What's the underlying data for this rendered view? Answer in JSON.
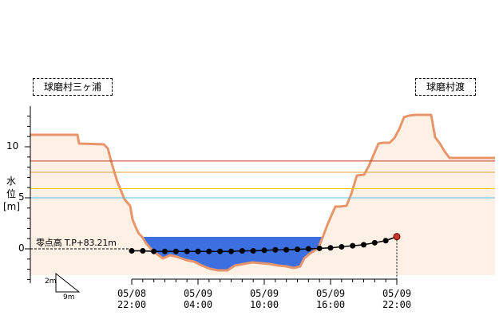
{
  "stations": {
    "left": "球磨村三ヶ浦",
    "right": "球磨村渡"
  },
  "y_axis": {
    "label_chars": [
      "水",
      "位",
      "[m]"
    ],
    "ticks": [
      "10",
      "5",
      "0"
    ]
  },
  "zero_point_label": "零点高 T.P+83.21m",
  "scale_legend": {
    "vertical": "2m",
    "horizontal": "9m"
  },
  "colors": {
    "profile_stroke": "#e8956b",
    "profile_fill": "#fbe3d0",
    "water_fill": "#3c6fe0",
    "line_red": "#c0392b",
    "line_orange": "#e6a23c",
    "line_yellow": "#f5d000",
    "line_blue": "#5bc0eb",
    "series_marker": "#000000",
    "current_marker": "#c0392b"
  },
  "chart_data": {
    "type": "line",
    "title": "",
    "xlabel": "",
    "ylabel": "水位[m]",
    "ylim": [
      -2.2,
      13.8
    ],
    "grid": false,
    "categories": [
      "05/08 22:00",
      "05/09 04:00",
      "05/09 10:00",
      "05/09 16:00",
      "05/09 22:00"
    ],
    "x_tick_labels": [
      {
        "date": "05/08",
        "time": "22:00"
      },
      {
        "date": "05/09",
        "time": "04:00"
      },
      {
        "date": "05/09",
        "time": "10:00"
      },
      {
        "date": "05/09",
        "time": "16:00"
      },
      {
        "date": "05/09",
        "time": "22:00"
      }
    ],
    "reference_levels": [
      {
        "value": 8.6,
        "color": "#c0392b"
      },
      {
        "value": 7.5,
        "color": "#e6a23c"
      },
      {
        "value": 5.9,
        "color": "#f5d000"
      },
      {
        "value": 5.0,
        "color": "#5bc0eb"
      }
    ],
    "series": [
      {
        "x": [
          "05/08 22:00",
          "05/08 23:00",
          "05/09 00:00",
          "05/09 01:00",
          "05/09 02:00",
          "05/09 03:00",
          "05/09 04:00",
          "05/09 05:00",
          "05/09 06:00",
          "05/09 07:00",
          "05/09 08:00",
          "05/09 09:00",
          "05/09 10:00",
          "05/09 11:00",
          "05/09 12:00",
          "05/09 13:00",
          "05/09 14:00",
          "05/09 15:00",
          "05/09 16:00",
          "05/09 17:00",
          "05/09 18:00",
          "05/09 19:00",
          "05/09 20:00",
          "05/09 21:00",
          "05/09 22:00"
        ],
        "values": [
          -0.2,
          -0.2,
          -0.25,
          -0.25,
          -0.25,
          -0.25,
          -0.25,
          -0.25,
          -0.25,
          -0.25,
          -0.2,
          -0.2,
          -0.15,
          -0.1,
          -0.1,
          -0.05,
          0.0,
          0.05,
          0.1,
          0.2,
          0.3,
          0.4,
          0.6,
          0.8,
          1.2
        ]
      }
    ]
  }
}
